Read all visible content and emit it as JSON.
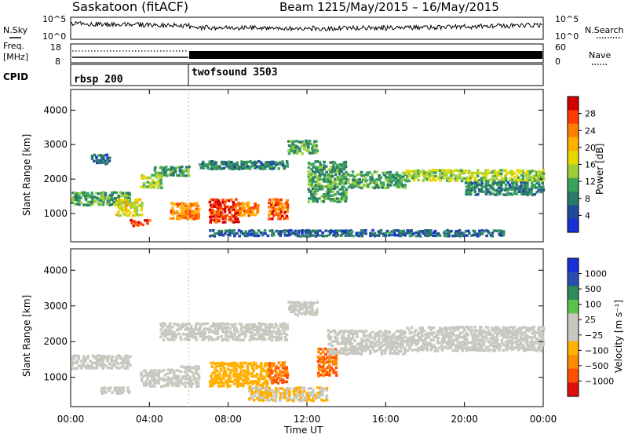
{
  "header": {
    "station": "Saskatoon (fitACF)",
    "beam": "Beam 12",
    "dates": "15/May/2015 – 16/May/2015"
  },
  "noise_panel": {
    "left_label": "N.Sky",
    "left_ticks": [
      "10^5",
      "10^0"
    ],
    "right_ticks": [
      "10^5",
      "10^0"
    ],
    "right_label": "N.Search"
  },
  "freq_panel": {
    "label_top": "Freq.",
    "label_unit": "[MHz]",
    "left_ticks": [
      "18",
      "8"
    ],
    "right_ticks": [
      "60",
      "0"
    ],
    "right_label": "Nave"
  },
  "cpid_panel": {
    "label": "CPID",
    "segments": [
      {
        "name": "rbsp 200",
        "start_hour": 0
      },
      {
        "name": "twofsound 3503",
        "start_hour": 6
      }
    ]
  },
  "power_colorbar": {
    "label": "Power [dB]",
    "ticks": [
      "28",
      "24",
      "20",
      "16",
      "12",
      "8",
      "4"
    ],
    "colors": [
      "#d40000",
      "#ff3a00",
      "#ff7f00",
      "#ffb000",
      "#e8d800",
      "#9ccf3a",
      "#3aa35a",
      "#2a7a6a",
      "#204a9c",
      "#1830d8"
    ]
  },
  "velocity_colorbar": {
    "label": "Velocity [m s⁻¹]",
    "ticks": [
      "1000",
      "500",
      "100",
      "25",
      "−25",
      "−100",
      "−500",
      "−1000"
    ],
    "colors": [
      "#1830d8",
      "#2a4fb0",
      "#2e8a5a",
      "#5cc24a",
      "#c8c8c0",
      "#c8c8c0",
      "#ffb000",
      "#ff8a00",
      "#ff5000",
      "#e01010"
    ]
  },
  "chart_data": {
    "type": "heatmap",
    "x_axis": {
      "label": "Time UT",
      "ticks": [
        "00:00",
        "04:00",
        "08:00",
        "12:00",
        "16:00",
        "20:00",
        "00:00"
      ],
      "range_hours": [
        0,
        24
      ]
    },
    "y_axis": {
      "label": "Slant Range [km]",
      "ticks": [
        "1000",
        "2000",
        "3000",
        "4000"
      ],
      "range_km": [
        180,
        4600
      ]
    },
    "panels": [
      {
        "name": "Power",
        "scale": [
          0,
          30
        ],
        "blobs": [
          {
            "t": [
              0,
              3.0
            ],
            "r": [
              1200,
              1600
            ],
            "v": 10
          },
          {
            "t": [
              1.0,
              2.0
            ],
            "r": [
              2400,
              2700
            ],
            "v": 6
          },
          {
            "t": [
              2.2,
              3.6
            ],
            "r": [
              900,
              1400
            ],
            "v": 16
          },
          {
            "t": [
              3.0,
              4.0
            ],
            "r": [
              600,
              800
            ],
            "v": 26
          },
          {
            "t": [
              3.5,
              4.6
            ],
            "r": [
              1700,
              2100
            ],
            "v": 14
          },
          {
            "t": [
              4.2,
              6.0
            ],
            "r": [
              2050,
              2350
            ],
            "v": 10
          },
          {
            "t": [
              5.0,
              6.5
            ],
            "r": [
              800,
              1300
            ],
            "v": 22
          },
          {
            "t": [
              7.0,
              8.5
            ],
            "r": [
              700,
              1400
            ],
            "v": 26
          },
          {
            "t": [
              8.5,
              9.5
            ],
            "r": [
              900,
              1300
            ],
            "v": 22
          },
          {
            "t": [
              6.5,
              11.0
            ],
            "r": [
              2250,
              2500
            ],
            "v": 8
          },
          {
            "t": [
              10.0,
              11.0
            ],
            "r": [
              800,
              1400
            ],
            "v": 24
          },
          {
            "t": [
              11.0,
              12.5
            ],
            "r": [
              2700,
              3100
            ],
            "v": 10
          },
          {
            "t": [
              12.0,
              14.0
            ],
            "r": [
              1300,
              2500
            ],
            "v": 10
          },
          {
            "t": [
              14.0,
              17.0
            ],
            "r": [
              1700,
              2200
            ],
            "v": 10
          },
          {
            "t": [
              17.0,
              24.0
            ],
            "r": [
              1900,
              2250
            ],
            "v": 14
          },
          {
            "t": [
              20.0,
              24.0
            ],
            "r": [
              1500,
              1900
            ],
            "v": 8
          },
          {
            "t": [
              7.0,
              22.0
            ],
            "r": [
              300,
              500
            ],
            "v": 6
          }
        ]
      },
      {
        "name": "Velocity",
        "scale": [
          -1000,
          1000
        ],
        "blobs": [
          {
            "t": [
              0,
              3.0
            ],
            "r": [
              1200,
              1600
            ],
            "v": 0
          },
          {
            "t": [
              1.5,
              3.0
            ],
            "r": [
              500,
              700
            ],
            "v": 60
          },
          {
            "t": [
              3.5,
              5.5
            ],
            "r": [
              700,
              1200
            ],
            "v": 150
          },
          {
            "t": [
              5.5,
              6.5
            ],
            "r": [
              700,
              1300
            ],
            "v": 60
          },
          {
            "t": [
              4.5,
              11.0
            ],
            "r": [
              2000,
              2500
            ],
            "v": 0
          },
          {
            "t": [
              7.0,
              10.0
            ],
            "r": [
              700,
              1400
            ],
            "v": -300
          },
          {
            "t": [
              10.0,
              11.0
            ],
            "r": [
              800,
              1400
            ],
            "v": -600
          },
          {
            "t": [
              11.0,
              12.5
            ],
            "r": [
              2700,
              3100
            ],
            "v": 0
          },
          {
            "t": [
              12.5,
              13.5
            ],
            "r": [
              1000,
              1800
            ],
            "v": -600
          },
          {
            "t": [
              13.0,
              17.0
            ],
            "r": [
              1600,
              2300
            ],
            "v": 0
          },
          {
            "t": [
              17.0,
              24.0
            ],
            "r": [
              1700,
              2400
            ],
            "v": 0
          },
          {
            "t": [
              9.0,
              13.0
            ],
            "r": [
              300,
              700
            ],
            "v": -200
          }
        ]
      }
    ]
  }
}
